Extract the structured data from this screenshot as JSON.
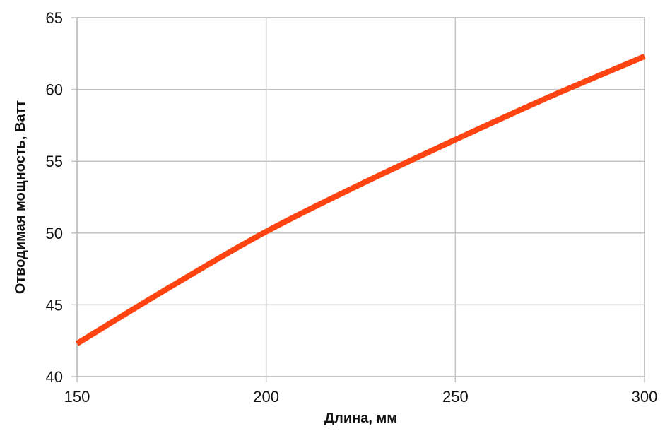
{
  "chart_data": {
    "type": "line",
    "title": "",
    "xlabel": "Длина, мм",
    "ylabel": "Отводимая мощность, Ватт",
    "xlim": [
      150,
      300
    ],
    "ylim": [
      40,
      65
    ],
    "x_ticks": [
      150,
      200,
      250,
      300
    ],
    "y_ticks": [
      40,
      45,
      50,
      55,
      60,
      65
    ],
    "grid": true,
    "legend": "none",
    "series": [
      {
        "color": "#ff4411",
        "x": [
          150,
          175,
          200,
          225,
          250,
          275,
          300
        ],
        "y": [
          42.3,
          46.3,
          50.1,
          53.4,
          56.5,
          59.5,
          62.3
        ]
      }
    ]
  }
}
